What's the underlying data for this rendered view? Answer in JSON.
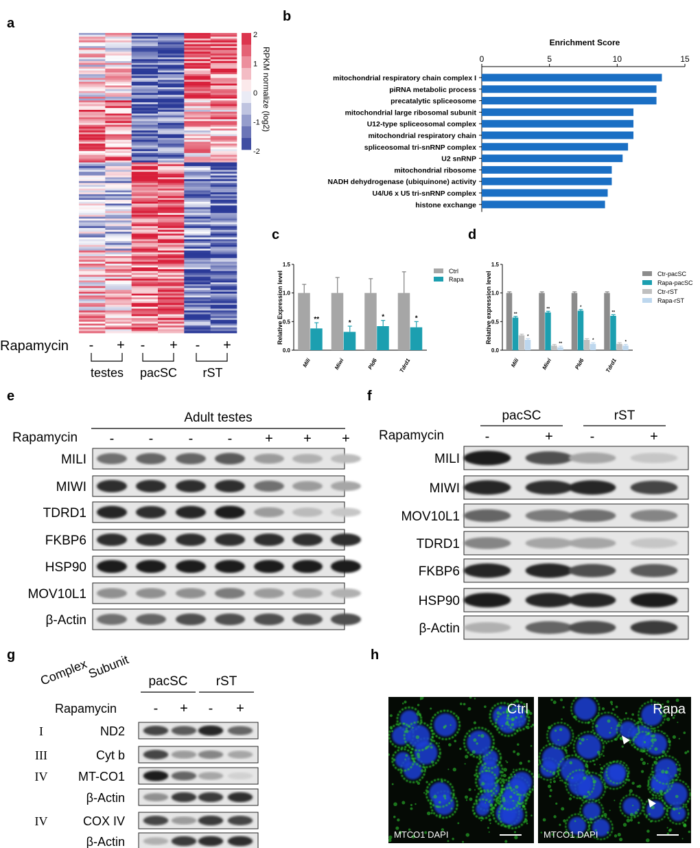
{
  "panels": {
    "a": {
      "label": "a",
      "colorbar_title": "RPKM normalize (log2)",
      "colorbar_ticks": [
        "2",
        "1",
        "0",
        "-1",
        "-2"
      ],
      "row_label": "Rapamycin",
      "signs": [
        "-",
        "+",
        "-",
        "+",
        "-",
        "+"
      ],
      "groups": [
        "testes",
        "pacSC",
        "rST"
      ],
      "colors": {
        "high": "#d81f3a",
        "mid": "#ffffff",
        "low": "#2b3a98"
      }
    },
    "b": {
      "label": "b",
      "chart_data": {
        "type": "bar",
        "orientation": "horizontal",
        "title": "Enrichment Score",
        "categories": [
          "mitochondrial respiratory chain complex I",
          "piRNA metabolic process",
          "precatalytic spliceosome",
          "mitochondrial large ribosomal subunit",
          "U12-type spliceosomal complex",
          "mitochondrial respiratory chain",
          "spliceosomal tri-snRNP complex",
          "U2 snRNP",
          "mitochondrial ribosome",
          "NADH dehydrogenase (ubiquinone) activity",
          "U4/U6 x U5 tri-snRNP complex",
          "histone exchange"
        ],
        "values": [
          13.3,
          12.9,
          12.9,
          11.2,
          11.2,
          11.2,
          10.8,
          10.4,
          9.6,
          9.6,
          9.3,
          9.1
        ],
        "xlim": [
          0,
          15
        ],
        "xticks": [
          "0",
          "5",
          "10",
          "15"
        ],
        "color": "#1a6fc4"
      }
    },
    "c": {
      "label": "c",
      "chart_data": {
        "type": "bar",
        "ylabel": "Relative Expression level",
        "categories": [
          "Mili",
          "Miwi",
          "Pld6",
          "Tdrd1"
        ],
        "series": [
          {
            "name": "Ctrl",
            "values": [
              1.0,
              1.0,
              1.0,
              1.0
            ],
            "errors": [
              0.15,
              0.27,
              0.25,
              0.37
            ],
            "color": "#a6a6a6"
          },
          {
            "name": "Rapa",
            "values": [
              0.38,
              0.32,
              0.42,
              0.4
            ],
            "errors": [
              0.1,
              0.1,
              0.1,
              0.1
            ],
            "color": "#1c9fb0"
          }
        ],
        "significance": [
          "**",
          "*",
          "*",
          "*"
        ],
        "ylim": [
          0,
          1.5
        ],
        "yticks": [
          "0.0",
          "0.5",
          "1.0",
          "1.5"
        ]
      }
    },
    "d": {
      "label": "d",
      "chart_data": {
        "type": "bar",
        "ylabel": "Relative expression level",
        "categories": [
          "Mili",
          "Miwi",
          "Pld6",
          "Tdrd1"
        ],
        "series": [
          {
            "name": "Ctr-pacSC",
            "values": [
              1.0,
              1.0,
              1.0,
              1.0
            ],
            "color": "#8c8c8c"
          },
          {
            "name": "Rapa-pacSC",
            "values": [
              0.57,
              0.66,
              0.69,
              0.6
            ],
            "color": "#1c9fb0"
          },
          {
            "name": "Ctr-rST",
            "values": [
              0.26,
              0.08,
              0.18,
              0.11
            ],
            "color": "#bfbfbf"
          },
          {
            "name": "Rapa-rST",
            "values": [
              0.18,
              0.05,
              0.11,
              0.08
            ],
            "color": "#bdd7ee"
          }
        ],
        "significance": [
          [
            "**",
            "*"
          ],
          [
            "**",
            "**"
          ],
          [
            "*",
            "*"
          ],
          [
            "**",
            "*"
          ]
        ],
        "ylim": [
          0,
          1.5
        ],
        "yticks": [
          "0.0",
          "0.5",
          "1.0",
          "1.5"
        ]
      }
    },
    "e": {
      "label": "e",
      "title": "Adult testes",
      "row_label": "Rapamycin",
      "signs": [
        "-",
        "-",
        "-",
        "-",
        "+",
        "+",
        "+"
      ],
      "proteins": [
        "MILI",
        "MIWI",
        "TDRD1",
        "FKBP6",
        "HSP90",
        "MOV10L1",
        "β-Actin"
      ],
      "intensity": [
        [
          0.55,
          0.6,
          0.6,
          0.65,
          0.35,
          0.25,
          0.2
        ],
        [
          0.85,
          0.85,
          0.85,
          0.85,
          0.55,
          0.35,
          0.3
        ],
        [
          0.9,
          0.85,
          0.9,
          0.95,
          0.35,
          0.2,
          0.15
        ],
        [
          0.85,
          0.85,
          0.85,
          0.85,
          0.85,
          0.85,
          0.85
        ],
        [
          0.95,
          0.95,
          0.95,
          0.95,
          0.95,
          0.95,
          0.95
        ],
        [
          0.4,
          0.4,
          0.4,
          0.5,
          0.35,
          0.3,
          0.25
        ],
        [
          0.55,
          0.6,
          0.7,
          0.7,
          0.7,
          0.7,
          0.7
        ]
      ]
    },
    "f": {
      "label": "f",
      "groups": [
        "pacSC",
        "rST"
      ],
      "row_label": "Rapamycin",
      "signs": [
        "-",
        "+",
        "-",
        "+"
      ],
      "proteins": [
        "MILI",
        "MIWI",
        "MOV10L1",
        "TDRD1",
        "FKBP6",
        "HSP90",
        "β-Actin"
      ],
      "intensity": [
        [
          0.95,
          0.7,
          0.3,
          0.15
        ],
        [
          0.9,
          0.85,
          0.9,
          0.75
        ],
        [
          0.6,
          0.5,
          0.55,
          0.45
        ],
        [
          0.45,
          0.3,
          0.3,
          0.15
        ],
        [
          0.9,
          0.9,
          0.7,
          0.65
        ],
        [
          0.95,
          0.9,
          0.9,
          0.95
        ],
        [
          0.25,
          0.6,
          0.7,
          0.8
        ]
      ]
    },
    "g": {
      "label": "g",
      "col_complex": "Complex",
      "col_subunit": "Subunit",
      "groups": [
        "pacSC",
        "rST"
      ],
      "row_label": "Rapamycin",
      "signs": [
        "-",
        "+",
        "-",
        "+"
      ],
      "rows": [
        {
          "complex": "I",
          "protein": "ND2"
        },
        {
          "complex": "III",
          "protein": "Cyt b"
        },
        {
          "complex": "IV",
          "protein": "MT-CO1"
        },
        {
          "complex": "",
          "protein": "β-Actin"
        },
        {
          "complex": "IV",
          "protein": "COX IV"
        },
        {
          "complex": "",
          "protein": "β-Actin"
        }
      ],
      "intensity": [
        [
          0.75,
          0.65,
          0.9,
          0.6
        ],
        [
          0.75,
          0.35,
          0.45,
          0.3
        ],
        [
          0.95,
          0.6,
          0.3,
          0.1
        ],
        [
          0.4,
          0.8,
          0.8,
          0.85
        ],
        [
          0.75,
          0.35,
          0.8,
          0.75
        ],
        [
          0.25,
          0.8,
          0.85,
          0.85
        ]
      ]
    },
    "h": {
      "label": "h",
      "images": [
        {
          "title": "Ctrl",
          "caption": "MTCO1 DAPI"
        },
        {
          "title": "Rapa",
          "caption": "MTCO1 DAPI"
        }
      ],
      "colors": {
        "nucleus": "#1c3fd6",
        "mito": "#2fd02f"
      }
    }
  }
}
